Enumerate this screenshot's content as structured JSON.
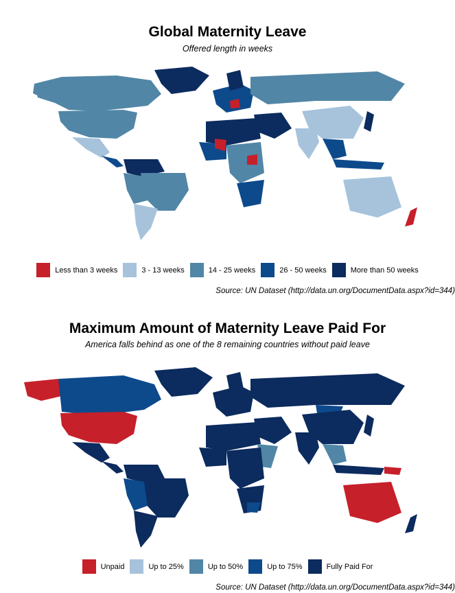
{
  "maps": [
    {
      "title": "Global Maternity Leave",
      "subtitle": "Offered length in weeks",
      "source": "Source: UN Dataset (http://data.un.org/DocumentData.aspx?id=344)",
      "legend": [
        {
          "label": "Less than 3 weeks",
          "color": "#c6202a"
        },
        {
          "label": "3 - 13 weeks",
          "color": "#a7c3dc"
        },
        {
          "label": "14 - 25 weeks",
          "color": "#5186a6"
        },
        {
          "label": "26 - 50 weeks",
          "color": "#0d4a8c"
        },
        {
          "label": "More than 50 weeks",
          "color": "#0c2b5e"
        }
      ]
    },
    {
      "title": "Maximum Amount of Maternity Leave Paid For",
      "subtitle": "America falls behind as one of the 8 remaining countries without paid leave",
      "source": "Source: UN Dataset (http://data.un.org/DocumentData.aspx?id=344)",
      "legend": [
        {
          "label": "Unpaid",
          "color": "#c6202a"
        },
        {
          "label": "Up to 25%",
          "color": "#a7c3dc"
        },
        {
          "label": "Up to 50%",
          "color": "#5186a6"
        },
        {
          "label": "Up to 75%",
          "color": "#0d4a8c"
        },
        {
          "label": "Fully Paid For",
          "color": "#0c2b5e"
        }
      ]
    }
  ]
}
